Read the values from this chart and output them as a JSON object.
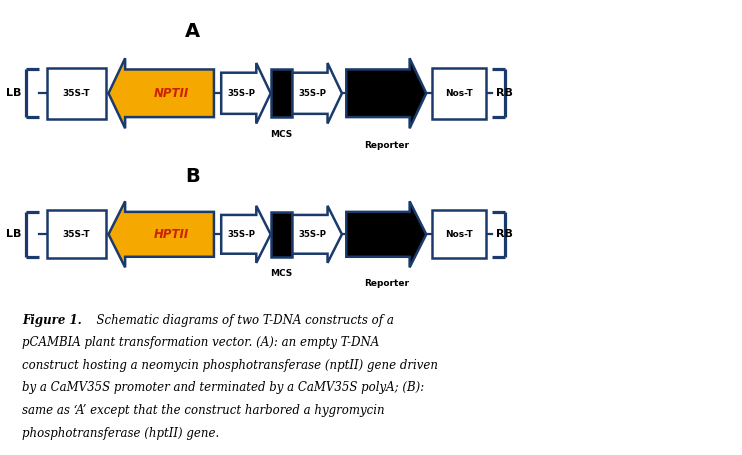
{
  "bg_color": "#ffffff",
  "outline_color": "#1a3a6b",
  "white_fill": "#ffffff",
  "black_fill": "#000000",
  "gold_fill": "#f5a800",
  "gene_label_color": "#cc2200",
  "label_A": "A",
  "label_B": "B",
  "gene_A": "NPTII",
  "gene_B": "HPTII",
  "caption_line1": "Figure 1.  Schematic diagrams of two T-DNA constructs of a",
  "caption_line2": "pCAMBIA plant transformation vector. (A): an empty T-DNA",
  "caption_line3": "construct hosting a neomycin phosphotransferase (nptII) gene driven",
  "caption_line4": "by a CaMV35S promoter and terminated by a CaMV35S polyA; (B):",
  "caption_line5": "same as ‘A’ except that the construct harbored a hygromycin",
  "caption_line6": "phosphotransferase (hptII) gene."
}
